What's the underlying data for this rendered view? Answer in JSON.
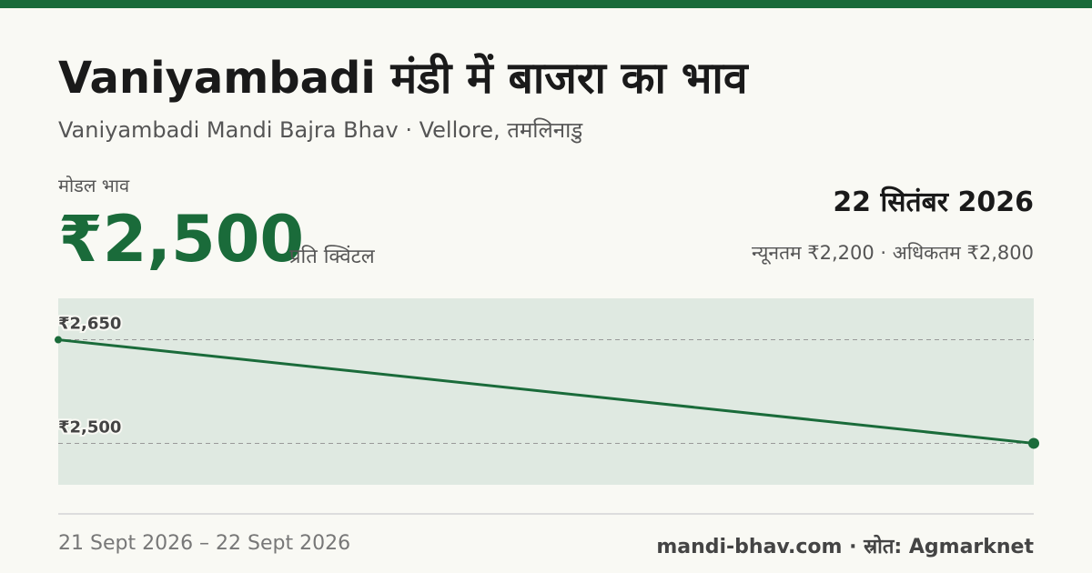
{
  "header": {
    "title": "Vaniyambadi मंडी में बाजरा का भाव",
    "subtitle": "Vaniyambadi Mandi Bajra Bhav · Vellore, तमलिनाडु"
  },
  "price": {
    "label": "मोडल भाव",
    "value": "₹2,500",
    "unit": "प्रति क्विंटल",
    "date": "22 सितंबर 2026",
    "range": "न्यूनतम ₹2,200 · अधिकतम ₹2,800"
  },
  "footer": {
    "date_range": "21 Sept 2026 – 22 Sept 2026",
    "source": "mandi-bhav.com · स्रोत: Agmarknet"
  },
  "chart_data": {
    "type": "line",
    "x": [
      "21 Sept 2026",
      "22 Sept 2026"
    ],
    "values": [
      2650,
      2500
    ],
    "color": "#1a6b3a",
    "ylim": [
      2440,
      2710
    ],
    "yticks": [
      {
        "value": 2500,
        "label": "₹2,500"
      },
      {
        "value": 2650,
        "label": "₹2,650"
      }
    ],
    "grid": true
  }
}
